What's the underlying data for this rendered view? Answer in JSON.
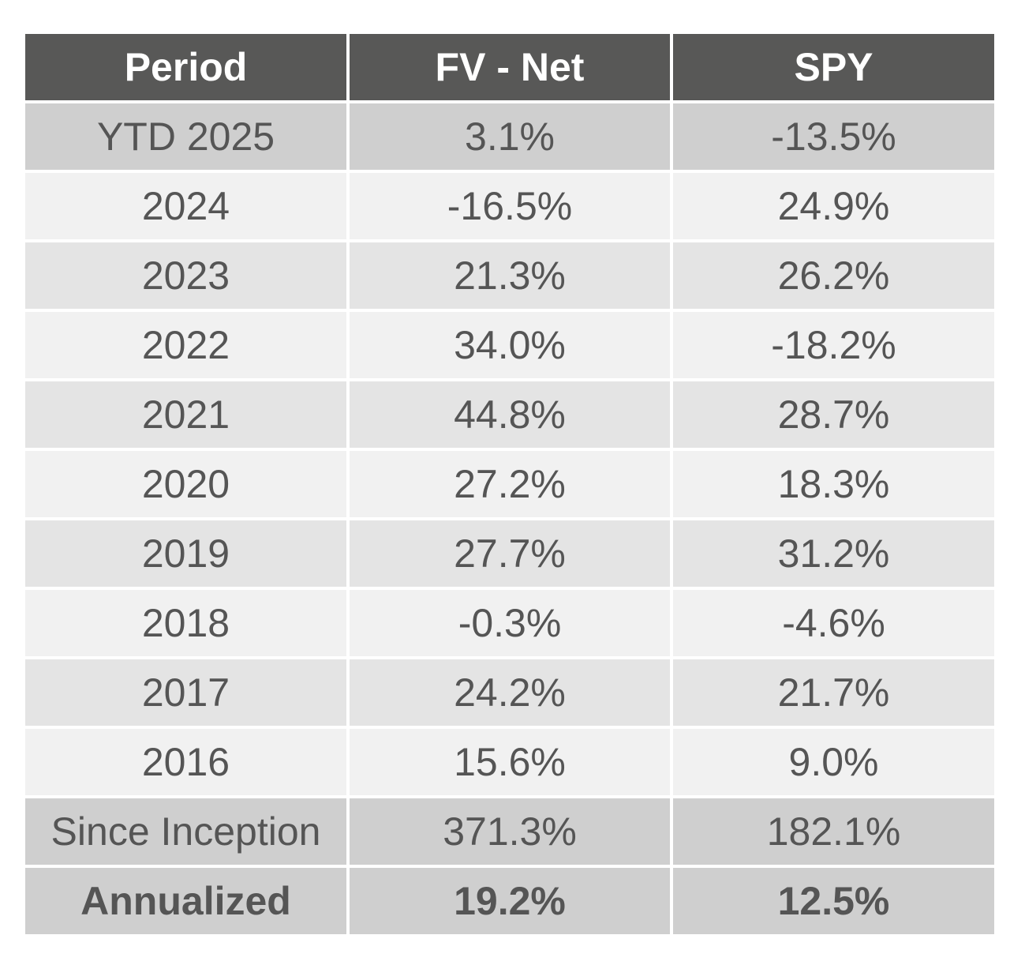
{
  "chart_data": {
    "type": "table",
    "columns": [
      "Period",
      "FV - Net",
      "SPY"
    ],
    "rows": [
      {
        "period": "YTD 2025",
        "fv_net": "3.1%",
        "spy": "-13.5%",
        "shade": "dark",
        "bold": false
      },
      {
        "period": "2024",
        "fv_net": "-16.5%",
        "spy": "24.9%",
        "shade": "light",
        "bold": false
      },
      {
        "period": "2023",
        "fv_net": "21.3%",
        "spy": "26.2%",
        "shade": "mid",
        "bold": false
      },
      {
        "period": "2022",
        "fv_net": "34.0%",
        "spy": "-18.2%",
        "shade": "light",
        "bold": false
      },
      {
        "period": "2021",
        "fv_net": "44.8%",
        "spy": "28.7%",
        "shade": "mid",
        "bold": false
      },
      {
        "period": "2020",
        "fv_net": "27.2%",
        "spy": "18.3%",
        "shade": "light",
        "bold": false
      },
      {
        "period": "2019",
        "fv_net": "27.7%",
        "spy": "31.2%",
        "shade": "mid",
        "bold": false
      },
      {
        "period": "2018",
        "fv_net": "-0.3%",
        "spy": "-4.6%",
        "shade": "light",
        "bold": false
      },
      {
        "period": "2017",
        "fv_net": "24.2%",
        "spy": "21.7%",
        "shade": "mid",
        "bold": false
      },
      {
        "period": "2016",
        "fv_net": "15.6%",
        "spy": "9.0%",
        "shade": "light",
        "bold": false
      },
      {
        "period": "Since Inception",
        "fv_net": "371.3%",
        "spy": "182.1%",
        "shade": "dark",
        "bold": false
      },
      {
        "period": "Annualized",
        "fv_net": "19.2%",
        "spy": "12.5%",
        "shade": "dark",
        "bold": true
      }
    ]
  },
  "colors": {
    "header_bg": "#585857",
    "header_text": "#ffffff",
    "row_dark": "#cfcfcf",
    "row_mid": "#e4e4e4",
    "row_light": "#f1f1f1",
    "cell_text": "#555555"
  }
}
